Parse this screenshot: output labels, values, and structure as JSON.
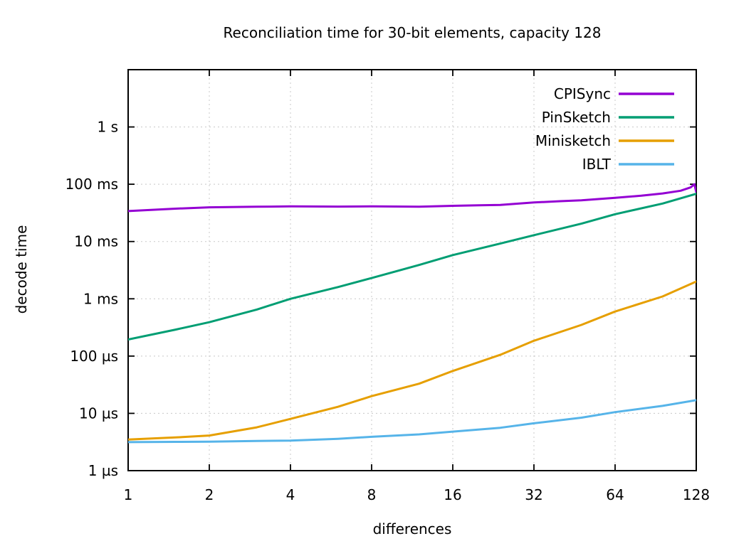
{
  "title": "Reconciliation time for 30-bit elements, capacity 128",
  "xlabel": "differences",
  "ylabel": "decode time",
  "chart_data": {
    "type": "line",
    "x_scale": "log2",
    "y_scale": "log10",
    "xlim": [
      1,
      128
    ],
    "ylim_us": [
      1,
      10000000
    ],
    "grid": "dashed-major",
    "legend_position": "top-right-inside",
    "x_ticks": [
      {
        "v": 1,
        "label": "1"
      },
      {
        "v": 2,
        "label": "2"
      },
      {
        "v": 4,
        "label": "4"
      },
      {
        "v": 8,
        "label": "8"
      },
      {
        "v": 16,
        "label": "16"
      },
      {
        "v": 32,
        "label": "32"
      },
      {
        "v": 64,
        "label": "64"
      },
      {
        "v": 128,
        "label": "128"
      }
    ],
    "y_ticks": [
      {
        "v": 1,
        "label": "1 µs"
      },
      {
        "v": 10,
        "label": "10 µs"
      },
      {
        "v": 100,
        "label": "100 µs"
      },
      {
        "v": 1000,
        "label": "1 ms"
      },
      {
        "v": 10000,
        "label": "10 ms"
      },
      {
        "v": 100000,
        "label": "100 ms"
      },
      {
        "v": 1000000,
        "label": "1 s"
      }
    ],
    "series": [
      {
        "name": "CPISync",
        "color": "#9400d3",
        "x": [
          1,
          1.5,
          2,
          3,
          4,
          6,
          8,
          12,
          16,
          20,
          24,
          32,
          40,
          48,
          64,
          80,
          96,
          112,
          122,
          126,
          128
        ],
        "y_us": [
          34000,
          37500,
          39500,
          40500,
          41000,
          40700,
          41000,
          40500,
          42000,
          42800,
          43500,
          48000,
          50500,
          52500,
          58000,
          63000,
          69000,
          77000,
          88000,
          100000,
          73000
        ]
      },
      {
        "name": "PinSketch",
        "color": "#009e73",
        "x": [
          1,
          1.5,
          2,
          3,
          4,
          6,
          8,
          12,
          16,
          24,
          32,
          48,
          64,
          96,
          128
        ],
        "y_us": [
          195,
          290,
          390,
          650,
          1000,
          1600,
          2300,
          3900,
          5800,
          9200,
          12900,
          20500,
          30000,
          46000,
          68000
        ]
      },
      {
        "name": "Minisketch",
        "color": "#e69f00",
        "x": [
          1,
          1.5,
          2,
          3,
          4,
          6,
          8,
          12,
          16,
          24,
          32,
          48,
          64,
          96,
          128
        ],
        "y_us": [
          3.5,
          3.8,
          4.1,
          5.7,
          8,
          13,
          20,
          33,
          55,
          105,
          185,
          350,
          600,
          1100,
          2000
        ]
      },
      {
        "name": "IBLT",
        "color": "#56b4e9",
        "x": [
          1,
          1.5,
          2,
          3,
          4,
          6,
          8,
          12,
          16,
          24,
          32,
          48,
          64,
          96,
          128
        ],
        "y_us": [
          3.15,
          3.18,
          3.2,
          3.3,
          3.35,
          3.6,
          3.9,
          4.3,
          4.8,
          5.6,
          6.7,
          8.4,
          10.5,
          13.5,
          17
        ]
      }
    ],
    "series_values_at_powers_of_two": {
      "x": [
        1,
        2,
        4,
        8,
        16,
        32,
        64,
        128
      ],
      "CPISync_us": [
        34000,
        39500,
        41000,
        41000,
        42000,
        48000,
        58000,
        73000
      ],
      "CPISync_peak_before_last_point_us": 100000,
      "PinSketch_us": [
        195,
        390,
        1000,
        2300,
        5800,
        12900,
        30000,
        68000
      ],
      "Minisketch_us": [
        3.5,
        4.1,
        8,
        20,
        55,
        185,
        600,
        2000
      ],
      "IBLT_us": [
        3.15,
        3.2,
        3.35,
        3.9,
        4.8,
        6.7,
        10.5,
        17
      ]
    }
  },
  "style": {
    "grid_color": "#c8c8c8",
    "axis_color": "#000000",
    "text_color": "#000000",
    "background": "#ffffff"
  }
}
